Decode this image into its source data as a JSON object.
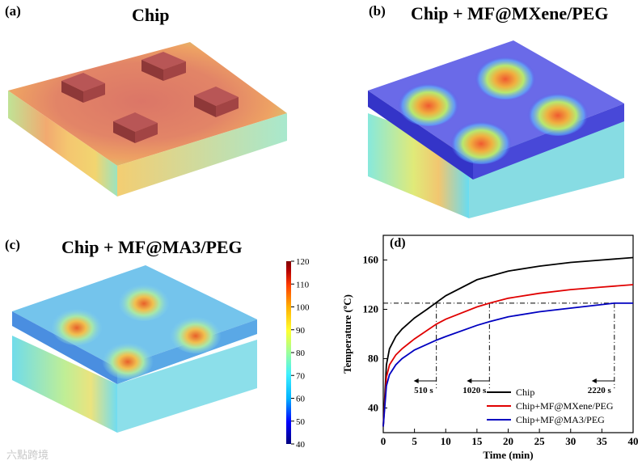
{
  "panels": {
    "a": {
      "label": "(a)",
      "title": "Chip"
    },
    "b": {
      "label": "(b)",
      "title": "Chip + MF@MXene/PEG"
    },
    "c": {
      "label": "(c)",
      "title": "Chip + MF@MA3/PEG"
    },
    "d": {
      "label": "(d)"
    }
  },
  "colorbar": {
    "ticks": [
      "120",
      "110",
      "100",
      "90",
      "80",
      "70",
      "60",
      "50",
      "40"
    ],
    "colors": [
      "#00007f",
      "#0000ff",
      "#00b4ff",
      "#3ef0ff",
      "#9cff9c",
      "#ffff30",
      "#ffb000",
      "#ff3c00",
      "#b40000",
      "#800000"
    ]
  },
  "watermark": "六點跨境",
  "chart_data": {
    "type": "line",
    "xlabel": "Time (min)",
    "ylabel": "Temperature (ºC)",
    "xlim": [
      0,
      40
    ],
    "ylim": [
      20,
      180
    ],
    "xticks": [
      "0",
      "5",
      "10",
      "15",
      "20",
      "25",
      "30",
      "35",
      "40"
    ],
    "yticks": [
      "40",
      "80",
      "120",
      "160"
    ],
    "series": [
      {
        "name": "Chip",
        "color": "#000000",
        "x": [
          0,
          0.5,
          1,
          2,
          3,
          5,
          7,
          10,
          15,
          20,
          25,
          30,
          35,
          40
        ],
        "y": [
          25,
          75,
          88,
          98,
          104,
          113,
          120,
          131,
          144,
          151,
          155,
          158,
          160,
          162
        ]
      },
      {
        "name": "Chip+MF@MXene/PEG",
        "color": "#e00000",
        "x": [
          0,
          0.5,
          1,
          2,
          3,
          5,
          8.5,
          10,
          15,
          17,
          20,
          25,
          30,
          35,
          40
        ],
        "y": [
          25,
          65,
          75,
          83,
          88,
          96,
          108,
          112,
          122,
          125,
          129,
          133,
          136,
          138,
          140
        ]
      },
      {
        "name": "Chip+MF@MA3/PEG",
        "color": "#0000c0",
        "x": [
          0,
          0.5,
          1,
          2,
          3,
          5,
          8.5,
          10,
          15,
          17,
          20,
          25,
          30,
          37,
          40
        ],
        "y": [
          25,
          58,
          67,
          75,
          80,
          87,
          95,
          98,
          107,
          110,
          114,
          118,
          121,
          125,
          125
        ]
      }
    ],
    "reference_line_y": 125,
    "annotations": [
      {
        "text": "510 s",
        "x": 8.5
      },
      {
        "text": "1020 s",
        "x": 17
      },
      {
        "text": "2220 s",
        "x": 37
      }
    ],
    "legend": "bottom-right"
  }
}
